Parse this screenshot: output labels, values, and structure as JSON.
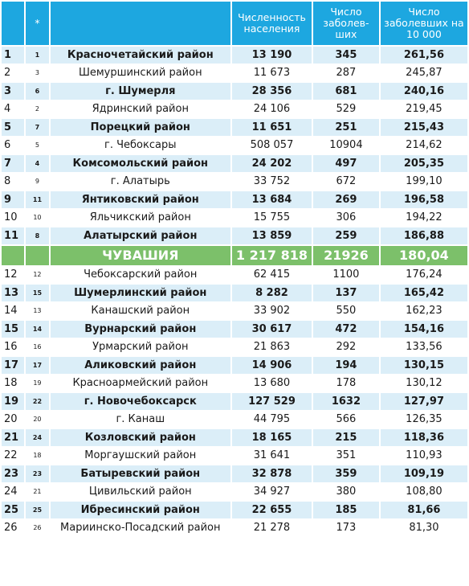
{
  "headers": {
    "rank": "",
    "prev": "*",
    "name": "",
    "population": "Численность населения",
    "cases": "Число заболев-ших",
    "rate": "Число заболевших на 10 000"
  },
  "rows": [
    {
      "rank": "1",
      "prev": "1",
      "name": "Красночетайский район",
      "population": "13 190",
      "cases": "345",
      "rate": "261,56",
      "bold": true
    },
    {
      "rank": "2",
      "prev": "3",
      "name": "Шемуршинский район",
      "population": "11 673",
      "cases": "287",
      "rate": "245,87",
      "bold": false
    },
    {
      "rank": "3",
      "prev": "6",
      "name": "г. Шумерля",
      "population": "28 356",
      "cases": "681",
      "rate": "240,16",
      "bold": true
    },
    {
      "rank": "4",
      "prev": "2",
      "name": "Ядринский район",
      "population": "24 106",
      "cases": "529",
      "rate": "219,45",
      "bold": false
    },
    {
      "rank": "5",
      "prev": "7",
      "name": "Порецкий район",
      "population": "11 651",
      "cases": "251",
      "rate": "215,43",
      "bold": true
    },
    {
      "rank": "6",
      "prev": "5",
      "name": "г. Чебоксары",
      "population": "508 057",
      "cases": "10904",
      "rate": "214,62",
      "bold": false
    },
    {
      "rank": "7",
      "prev": "4",
      "name": "Комсомольский район",
      "population": "24 202",
      "cases": "497",
      "rate": "205,35",
      "bold": true
    },
    {
      "rank": "8",
      "prev": "9",
      "name": "г. Алатырь",
      "population": "33 752",
      "cases": "672",
      "rate": "199,10",
      "bold": false
    },
    {
      "rank": "9",
      "prev": "11",
      "name": "Янтиковский район",
      "population": "13 684",
      "cases": "269",
      "rate": "196,58",
      "bold": true
    },
    {
      "rank": "10",
      "prev": "10",
      "name": "Яльчикский район",
      "population": "15 755",
      "cases": "306",
      "rate": "194,22",
      "bold": false
    },
    {
      "rank": "11",
      "prev": "8",
      "name": "Алатырский район",
      "population": "13 859",
      "cases": "259",
      "rate": "186,88",
      "bold": true
    },
    {
      "rank": "",
      "prev": "",
      "name": "ЧУВАШИЯ",
      "population": "1 217 818",
      "cases": "21926",
      "rate": "180,04",
      "highlight": true
    },
    {
      "rank": "12",
      "prev": "12",
      "name": "Чебоксарский район",
      "population": "62 415",
      "cases": "1100",
      "rate": "176,24",
      "bold": false
    },
    {
      "rank": "13",
      "prev": "15",
      "name": "Шумерлинский район",
      "population": "8 282",
      "cases": "137",
      "rate": "165,42",
      "bold": true
    },
    {
      "rank": "14",
      "prev": "13",
      "name": "Канашский район",
      "population": "33 902",
      "cases": "550",
      "rate": "162,23",
      "bold": false
    },
    {
      "rank": "15",
      "prev": "14",
      "name": "Вурнарский район",
      "population": "30 617",
      "cases": "472",
      "rate": "154,16",
      "bold": true
    },
    {
      "rank": "16",
      "prev": "16",
      "name": "Урмарский район",
      "population": "21 863",
      "cases": "292",
      "rate": "133,56",
      "bold": false
    },
    {
      "rank": "17",
      "prev": "17",
      "name": "Аликовский район",
      "population": "14 906",
      "cases": "194",
      "rate": "130,15",
      "bold": true
    },
    {
      "rank": "18",
      "prev": "19",
      "name": "Красноармейский район",
      "population": "13 680",
      "cases": "178",
      "rate": "130,12",
      "bold": false
    },
    {
      "rank": "19",
      "prev": "22",
      "name": "г. Новочебоксарск",
      "population": "127 529",
      "cases": "1632",
      "rate": "127,97",
      "bold": true
    },
    {
      "rank": "20",
      "prev": "20",
      "name": "г. Канаш",
      "population": "44 795",
      "cases": "566",
      "rate": "126,35",
      "bold": false
    },
    {
      "rank": "21",
      "prev": "24",
      "name": "Козловский район",
      "population": "18 165",
      "cases": "215",
      "rate": "118,36",
      "bold": true
    },
    {
      "rank": "22",
      "prev": "18",
      "name": "Моргаушский район",
      "population": "31 641",
      "cases": "351",
      "rate": "110,93",
      "bold": false
    },
    {
      "rank": "23",
      "prev": "23",
      "name": "Батыревский район",
      "population": "32 878",
      "cases": "359",
      "rate": "109,19",
      "bold": true
    },
    {
      "rank": "24",
      "prev": "21",
      "name": "Цивильский район",
      "population": "34 927",
      "cases": "380",
      "rate": "108,80",
      "bold": false
    },
    {
      "rank": "25",
      "prev": "25",
      "name": "Ибресинский район",
      "population": "22 655",
      "cases": "185",
      "rate": "81,66",
      "bold": true
    },
    {
      "rank": "26",
      "prev": "26",
      "name": "Мариинско-Посадский район",
      "population": "21 278",
      "cases": "173",
      "rate": "81,30",
      "bold": false
    }
  ]
}
